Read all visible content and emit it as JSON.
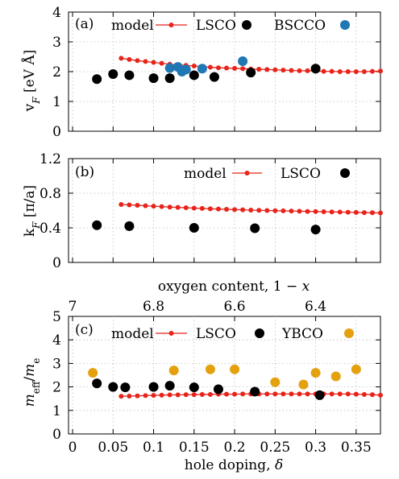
{
  "chart_data": [
    {
      "type": "scatter",
      "panel": "(a)",
      "ylabel": "v_F [eV Å]",
      "ylim": [
        0,
        4
      ],
      "yticks": [
        0,
        1,
        2,
        3,
        4
      ],
      "xlim": [
        -0.005,
        0.38
      ],
      "grid": true,
      "legend_position": "top",
      "legend": [
        "model",
        "LSCO",
        "BSCCO"
      ],
      "series": [
        {
          "name": "model",
          "color": "#e8231a",
          "style": "line-dot",
          "x": [
            0.06,
            0.07,
            0.08,
            0.09,
            0.1,
            0.11,
            0.12,
            0.13,
            0.14,
            0.15,
            0.16,
            0.17,
            0.18,
            0.19,
            0.2,
            0.21,
            0.22,
            0.23,
            0.24,
            0.25,
            0.26,
            0.27,
            0.28,
            0.29,
            0.3,
            0.31,
            0.32,
            0.33,
            0.34,
            0.35,
            0.36,
            0.37,
            0.38
          ],
          "y": [
            2.45,
            2.41,
            2.37,
            2.34,
            2.31,
            2.28,
            2.25,
            2.23,
            2.21,
            2.19,
            2.17,
            2.15,
            2.13,
            2.12,
            2.11,
            2.1,
            2.09,
            2.08,
            2.07,
            2.06,
            2.05,
            2.04,
            2.03,
            2.03,
            2.02,
            2.01,
            2.01,
            2.0,
            2.0,
            2.0,
            2.0,
            2.01,
            2.02
          ]
        },
        {
          "name": "LSCO",
          "color": "#000000",
          "style": "dot",
          "x": [
            0.03,
            0.05,
            0.07,
            0.1,
            0.12,
            0.15,
            0.175,
            0.22,
            0.3
          ],
          "y": [
            1.75,
            1.92,
            1.88,
            1.78,
            1.78,
            1.88,
            1.82,
            1.97,
            2.1
          ]
        },
        {
          "name": "BSCCO",
          "color": "#1f77b4",
          "style": "dot",
          "x": [
            0.12,
            0.13,
            0.135,
            0.14,
            0.16,
            0.21
          ],
          "y": [
            2.12,
            2.16,
            2.0,
            2.07,
            2.1,
            2.35
          ]
        }
      ]
    },
    {
      "type": "scatter",
      "panel": "(b)",
      "ylabel": "k_F [π/a]",
      "ylim": [
        0,
        1.2
      ],
      "yticks": [
        "0",
        "0.4",
        "0.8",
        "1.2"
      ],
      "xlim": [
        -0.005,
        0.38
      ],
      "grid": true,
      "legend_position": "top-right",
      "legend": [
        "model",
        "LSCO"
      ],
      "series": [
        {
          "name": "model",
          "color": "#e8231a",
          "style": "line-dot",
          "x": [
            0.06,
            0.07,
            0.08,
            0.09,
            0.1,
            0.11,
            0.12,
            0.13,
            0.14,
            0.15,
            0.16,
            0.17,
            0.18,
            0.19,
            0.2,
            0.21,
            0.22,
            0.23,
            0.24,
            0.25,
            0.26,
            0.27,
            0.28,
            0.29,
            0.3,
            0.31,
            0.32,
            0.33,
            0.34,
            0.35,
            0.36,
            0.37,
            0.38
          ],
          "y": [
            0.67,
            0.665,
            0.66,
            0.655,
            0.65,
            0.645,
            0.64,
            0.636,
            0.632,
            0.628,
            0.624,
            0.62,
            0.617,
            0.614,
            0.611,
            0.608,
            0.605,
            0.602,
            0.6,
            0.598,
            0.596,
            0.594,
            0.592,
            0.59,
            0.588,
            0.586,
            0.584,
            0.582,
            0.58,
            0.578,
            0.576,
            0.574,
            0.572
          ]
        },
        {
          "name": "LSCO",
          "color": "#000000",
          "style": "dot",
          "x": [
            0.03,
            0.07,
            0.15,
            0.225,
            0.3
          ],
          "y": [
            0.43,
            0.42,
            0.4,
            0.395,
            0.38
          ]
        }
      ]
    },
    {
      "type": "scatter",
      "panel": "(c)",
      "ylabel": "m_eff/m_e",
      "xlabel": "hole doping, δ",
      "top_xlabel": "oxygen content, 1 − x",
      "ylim": [
        0,
        5
      ],
      "yticks": [
        0,
        1,
        2,
        3,
        4,
        5
      ],
      "xlim": [
        -0.005,
        0.38
      ],
      "xticks": [
        "0",
        "0.05",
        "0.1",
        "0.15",
        "0.2",
        "0.25",
        "0.3",
        "0.35"
      ],
      "top_xticks": [
        "7",
        "6.8",
        "6.6",
        "6.4"
      ],
      "grid": true,
      "legend_position": "top",
      "legend": [
        "model",
        "LSCO",
        "YBCO"
      ],
      "series": [
        {
          "name": "model",
          "color": "#e8231a",
          "style": "line-dot",
          "x": [
            0.06,
            0.07,
            0.08,
            0.09,
            0.1,
            0.11,
            0.12,
            0.13,
            0.14,
            0.15,
            0.16,
            0.17,
            0.18,
            0.19,
            0.2,
            0.21,
            0.22,
            0.23,
            0.24,
            0.25,
            0.26,
            0.27,
            0.28,
            0.29,
            0.3,
            0.31,
            0.32,
            0.33,
            0.34,
            0.35,
            0.36,
            0.37,
            0.38
          ],
          "y": [
            1.6,
            1.61,
            1.62,
            1.63,
            1.64,
            1.65,
            1.66,
            1.66,
            1.67,
            1.67,
            1.68,
            1.68,
            1.69,
            1.69,
            1.69,
            1.7,
            1.7,
            1.7,
            1.7,
            1.7,
            1.7,
            1.7,
            1.7,
            1.7,
            1.7,
            1.7,
            1.7,
            1.7,
            1.7,
            1.69,
            1.68,
            1.67,
            1.65
          ]
        },
        {
          "name": "LSCO",
          "color": "#000000",
          "style": "dot",
          "x": [
            0.03,
            0.05,
            0.065,
            0.1,
            0.12,
            0.15,
            0.18,
            0.225,
            0.305
          ],
          "y": [
            2.15,
            2.0,
            1.98,
            2.0,
            2.05,
            1.98,
            1.9,
            1.8,
            1.65
          ]
        },
        {
          "name": "YBCO",
          "color": "#e5a00d",
          "style": "dot",
          "x": [
            0.025,
            0.125,
            0.17,
            0.2,
            0.25,
            0.285,
            0.3,
            0.325,
            0.35
          ],
          "y": [
            2.6,
            2.7,
            2.75,
            2.75,
            2.2,
            2.1,
            2.6,
            2.45,
            2.75
          ]
        }
      ]
    }
  ]
}
